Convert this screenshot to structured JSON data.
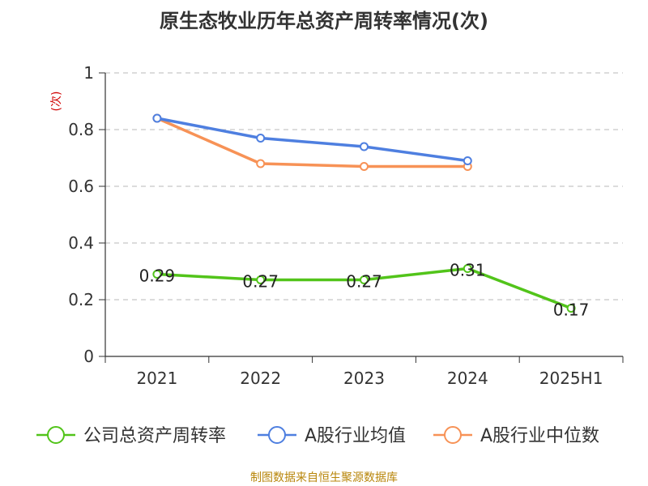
{
  "chart_data": {
    "type": "line",
    "title": "原生态牧业历年总资产周转率情况(次)",
    "ylabel": "(次)",
    "xlabel": "",
    "categories": [
      "2021",
      "2022",
      "2023",
      "2024",
      "2025H1"
    ],
    "ylim": [
      0,
      1
    ],
    "yticks": [
      0,
      0.2,
      0.4,
      0.6,
      0.8,
      1
    ],
    "ytick_labels": [
      "0",
      "0.2",
      "0.4",
      "0.6",
      "0.8",
      "1"
    ],
    "grid": true,
    "legend_position": "bottom",
    "series": [
      {
        "name": "公司总资产周转率",
        "color": "#52c41a",
        "values": [
          0.29,
          0.27,
          0.27,
          0.31,
          0.17
        ],
        "labels": [
          "0.29",
          "0.27",
          "0.27",
          "0.31",
          "0.17"
        ]
      },
      {
        "name": "A股行业均值",
        "color": "#4e7fe0",
        "values": [
          0.84,
          0.77,
          0.74,
          0.69,
          null
        ]
      },
      {
        "name": "A股行业中位数",
        "color": "#f79256",
        "values": [
          0.84,
          0.68,
          0.67,
          0.67,
          null
        ]
      }
    ]
  },
  "footer": {
    "source": "制图数据来自恒生聚源数据库"
  }
}
